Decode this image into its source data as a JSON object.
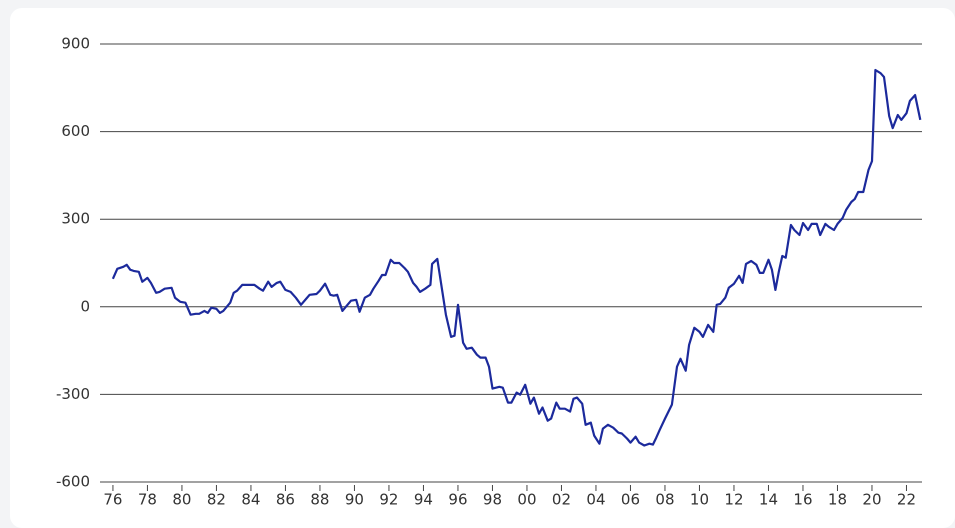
{
  "chart_data": {
    "type": "line",
    "x": [
      1976.0,
      1976.25,
      1976.6,
      1976.8,
      1977.0,
      1977.2,
      1977.5,
      1977.7,
      1978.0,
      1978.2,
      1978.5,
      1978.7,
      1979.0,
      1979.4,
      1979.6,
      1979.9,
      1980.2,
      1980.5,
      1980.8,
      1981.0,
      1981.3,
      1981.5,
      1981.7,
      1982.0,
      1982.2,
      1982.4,
      1982.8,
      1983.0,
      1983.2,
      1983.5,
      1983.9,
      1984.2,
      1984.5,
      1984.7,
      1985.0,
      1985.2,
      1985.5,
      1985.7,
      1986.0,
      1986.3,
      1986.6,
      1986.9,
      1987.2,
      1987.4,
      1987.8,
      1988.0,
      1988.3,
      1988.6,
      1988.8,
      1989.0,
      1989.3,
      1989.6,
      1989.8,
      1990.1,
      1990.3,
      1990.6,
      1990.9,
      1991.1,
      1991.4,
      1991.6,
      1991.8,
      1992.1,
      1992.3,
      1992.6,
      1992.9,
      1993.1,
      1993.4,
      1993.6,
      1993.8,
      1994.1,
      1994.4,
      1994.5,
      1994.8,
      1995.1,
      1995.3,
      1995.6,
      1995.8,
      1996.0,
      1996.3,
      1996.5,
      1996.8,
      1997.1,
      1997.3,
      1997.6,
      1997.8,
      1998.0,
      1998.4,
      1998.6,
      1998.9,
      1999.1,
      1999.4,
      1999.6,
      1999.9,
      2000.2,
      2000.4,
      2000.7,
      2000.9,
      2001.2,
      2001.4,
      2001.7,
      2001.9,
      2002.2,
      2002.5,
      2002.7,
      2002.9,
      2003.2,
      2003.4,
      2003.7,
      2003.9,
      2004.2,
      2004.4,
      2004.7,
      2005.0,
      2005.3,
      2005.5,
      2005.8,
      2006.0,
      2006.3,
      2006.5,
      2006.8,
      2007.1,
      2007.3,
      2007.5,
      2007.7,
      2008.0,
      2008.4,
      2008.7,
      2008.9,
      2009.2,
      2009.4,
      2009.7,
      2010.0,
      2010.2,
      2010.5,
      2010.8,
      2011.0,
      2011.2,
      2011.5,
      2011.7,
      2012.0,
      2012.3,
      2012.5,
      2012.7,
      2013.0,
      2013.3,
      2013.5,
      2013.7,
      2014.0,
      2014.2,
      2014.4,
      2014.6,
      2014.8,
      2015.0,
      2015.3,
      2015.5,
      2015.8,
      2016.0,
      2016.3,
      2016.5,
      2016.8,
      2017.0,
      2017.3,
      2017.5,
      2017.8,
      2018.0,
      2018.3,
      2018.5,
      2018.8,
      2019.0,
      2019.2,
      2019.5,
      2019.8,
      2020.0,
      2020.2,
      2020.5,
      2020.7,
      2021.0,
      2021.2,
      2021.5,
      2021.7,
      2022.0,
      2022.2,
      2022.5,
      2022.8
    ],
    "series": [
      {
        "color": "#1c2a9c",
        "values": [
          96,
          130,
          137,
          144,
          127,
          123,
          120,
          86,
          99,
          82,
          48,
          51,
          62,
          65,
          31,
          17,
          14,
          -27,
          -24,
          -24,
          -14,
          -21,
          -3,
          -7,
          -21,
          -14,
          14,
          48,
          55,
          75,
          75,
          75,
          62,
          55,
          86,
          68,
          82,
          86,
          58,
          51,
          31,
          7,
          27,
          41,
          44,
          55,
          79,
          41,
          38,
          41,
          -14,
          7,
          21,
          24,
          -17,
          31,
          41,
          62,
          89,
          109,
          109,
          161,
          150,
          150,
          133,
          120,
          82,
          68,
          51,
          62,
          75,
          147,
          164,
          51,
          -27,
          -103,
          -99,
          7,
          -123,
          -144,
          -140,
          -164,
          -174,
          -174,
          -205,
          -280,
          -274,
          -277,
          -328,
          -328,
          -294,
          -301,
          -267,
          -332,
          -311,
          -366,
          -345,
          -390,
          -383,
          -328,
          -349,
          -349,
          -359,
          -315,
          -311,
          -332,
          -404,
          -397,
          -441,
          -469,
          -417,
          -404,
          -414,
          -431,
          -434,
          -451,
          -465,
          -445,
          -465,
          -475,
          -469,
          -472,
          -448,
          -421,
          -383,
          -335,
          -205,
          -178,
          -219,
          -130,
          -72,
          -86,
          -103,
          -62,
          -86,
          7,
          10,
          31,
          65,
          79,
          106,
          82,
          147,
          157,
          144,
          116,
          116,
          161,
          127,
          58,
          120,
          174,
          168,
          280,
          263,
          246,
          287,
          263,
          284,
          284,
          246,
          284,
          274,
          263,
          284,
          304,
          332,
          359,
          369,
          393,
          393,
          469,
          499,
          811,
          800,
          787,
          653,
          612,
          657,
          640,
          663,
          705,
          725,
          640
        ]
      }
    ],
    "xlim": [
      1975.25,
      2022.9
    ],
    "xticks": [
      {
        "value": 1976,
        "label": "76"
      },
      {
        "value": 1978,
        "label": "78"
      },
      {
        "value": 1980,
        "label": "80"
      },
      {
        "value": 1982,
        "label": "82"
      },
      {
        "value": 1984,
        "label": "84"
      },
      {
        "value": 1986,
        "label": "86"
      },
      {
        "value": 1988,
        "label": "88"
      },
      {
        "value": 1990,
        "label": "90"
      },
      {
        "value": 1992,
        "label": "92"
      },
      {
        "value": 1994,
        "label": "94"
      },
      {
        "value": 1996,
        "label": "96"
      },
      {
        "value": 1998,
        "label": "98"
      },
      {
        "value": 2000,
        "label": "00"
      },
      {
        "value": 2002,
        "label": "02"
      },
      {
        "value": 2004,
        "label": "04"
      },
      {
        "value": 2006,
        "label": "06"
      },
      {
        "value": 2008,
        "label": "08"
      },
      {
        "value": 2010,
        "label": "10"
      },
      {
        "value": 2012,
        "label": "12"
      },
      {
        "value": 2014,
        "label": "14"
      },
      {
        "value": 2016,
        "label": "16"
      },
      {
        "value": 2018,
        "label": "18"
      },
      {
        "value": 2020,
        "label": "20"
      },
      {
        "value": 2022,
        "label": "22"
      }
    ],
    "ylim": [
      -600,
      900
    ],
    "yticks": [
      -600,
      -300,
      0,
      300,
      600,
      900
    ],
    "grid": true
  }
}
